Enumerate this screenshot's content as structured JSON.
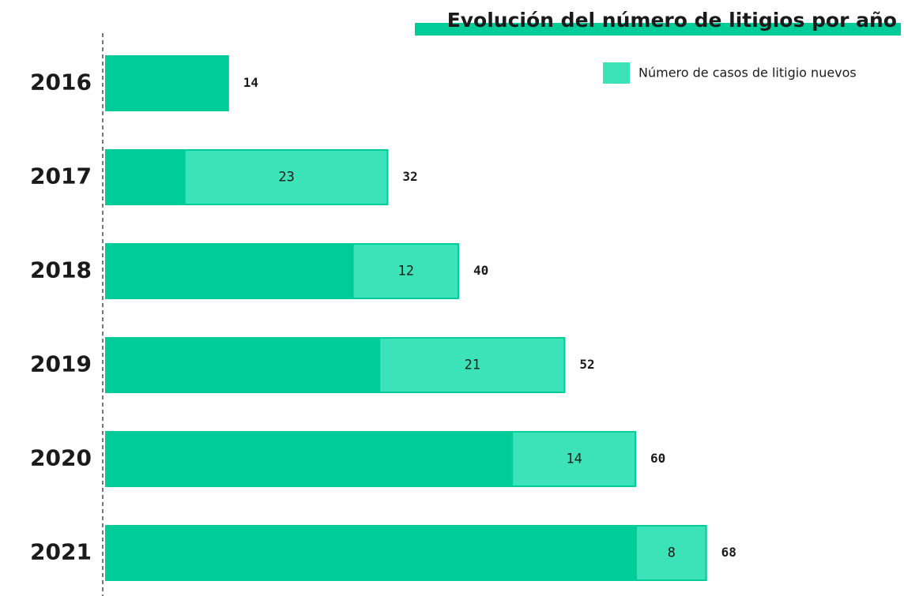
{
  "chart_data": {
    "type": "bar",
    "orientation": "horizontal",
    "title": "Evolución del número de litigios por año",
    "categories": [
      "2016",
      "2017",
      "2018",
      "2019",
      "2020",
      "2021"
    ],
    "totals": [
      14,
      32,
      40,
      52,
      60,
      68
    ],
    "total_color": "#00cc99",
    "series": [
      {
        "name": "Número de casos de litigio nuevos",
        "color": "#3de3b8",
        "values": [
          null,
          23,
          12,
          21,
          14,
          8
        ]
      }
    ],
    "xlim": [
      0,
      70
    ],
    "legend": "top-right"
  }
}
